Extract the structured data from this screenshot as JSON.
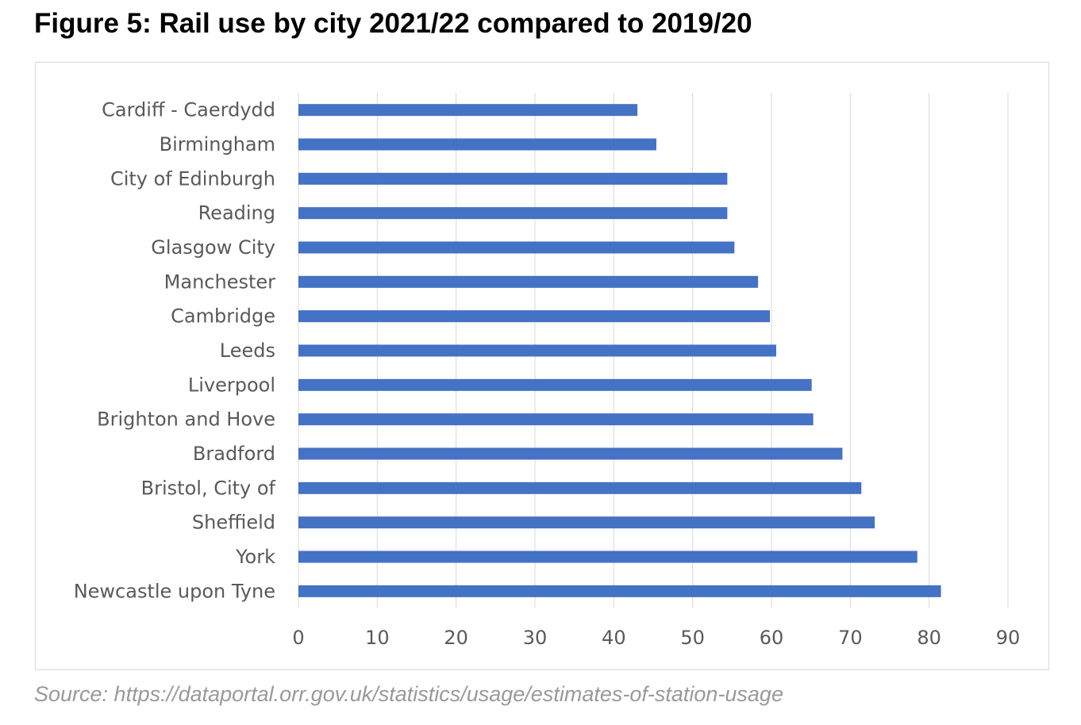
{
  "figure": {
    "title": "Figure 5: Rail use by city 2021/22 compared to 2019/20",
    "source": "Source: https://dataportal.orr.gov.uk/statistics/usage/estimates-of-station-usage"
  },
  "colors": {
    "bar": "#4472c4",
    "grid": "#d9d9d9",
    "label": "#595959"
  },
  "chart_data": {
    "type": "bar",
    "orientation": "horizontal",
    "title": "",
    "xlabel": "",
    "ylabel": "",
    "categories": [
      "Cardiff - Caerdydd",
      "Birmingham",
      "City of Edinburgh",
      "Reading",
      "Glasgow City",
      "Manchester",
      "Cambridge",
      "Leeds",
      "Liverpool",
      "Brighton and Hove",
      "Bradford",
      "Bristol, City of",
      "Sheffield",
      "York",
      "Newcastle upon Tyne"
    ],
    "values": [
      43,
      45.4,
      54.4,
      54.4,
      55.3,
      58.3,
      59.8,
      60.6,
      65.1,
      65.3,
      69.0,
      71.4,
      73.1,
      78.5,
      81.5
    ],
    "xlim": [
      0,
      90
    ],
    "xticks": [
      0,
      10,
      20,
      30,
      40,
      50,
      60,
      70,
      80,
      90
    ],
    "grid": true,
    "legend": "none"
  }
}
